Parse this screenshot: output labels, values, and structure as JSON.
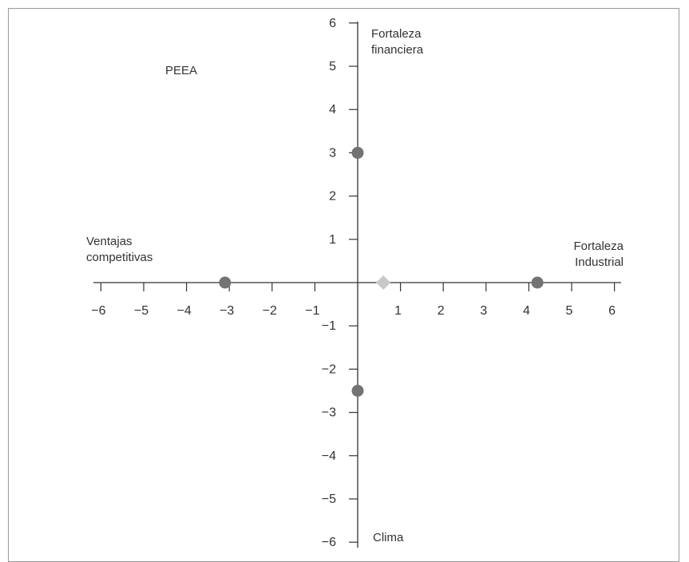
{
  "chart_data": {
    "type": "scatter",
    "title": "PEEA",
    "axis_labels": {
      "top": "Fortaleza financiera",
      "right": "Fortaleza Industrial",
      "left": "Ventajas competitivas",
      "bottom": "Clima"
    },
    "xlim": [
      -6,
      6
    ],
    "ylim": [
      -6,
      6
    ],
    "x_ticks": [
      -6,
      -5,
      -4,
      -3,
      -2,
      -1,
      1,
      2,
      3,
      4,
      5,
      6
    ],
    "y_ticks": [
      6,
      5,
      4,
      3,
      2,
      1,
      -1,
      -2,
      -3,
      -4,
      -5,
      -6
    ],
    "x_tick_labels": [
      "−6",
      "−5",
      "−4",
      "−3",
      "−2",
      "−1",
      "1",
      "2",
      "3",
      "4",
      "5",
      "6"
    ],
    "y_tick_labels": [
      "6",
      "5",
      "4",
      "3",
      "2",
      "1",
      "−1",
      "−2",
      "−3",
      "−4",
      "−5",
      "−6"
    ],
    "points": [
      {
        "x": 0,
        "y": 3.0,
        "marker": "circle"
      },
      {
        "x": -3.1,
        "y": 0,
        "marker": "circle"
      },
      {
        "x": 4.2,
        "y": 0,
        "marker": "circle"
      },
      {
        "x": 0,
        "y": -2.5,
        "marker": "circle"
      },
      {
        "x": 0.6,
        "y": 0,
        "marker": "diamond"
      }
    ],
    "colors": {
      "axis": "#333333",
      "circle": "#737373",
      "diamond": "#c8c8c8",
      "border": "#9a9a9a"
    },
    "grid": false
  }
}
